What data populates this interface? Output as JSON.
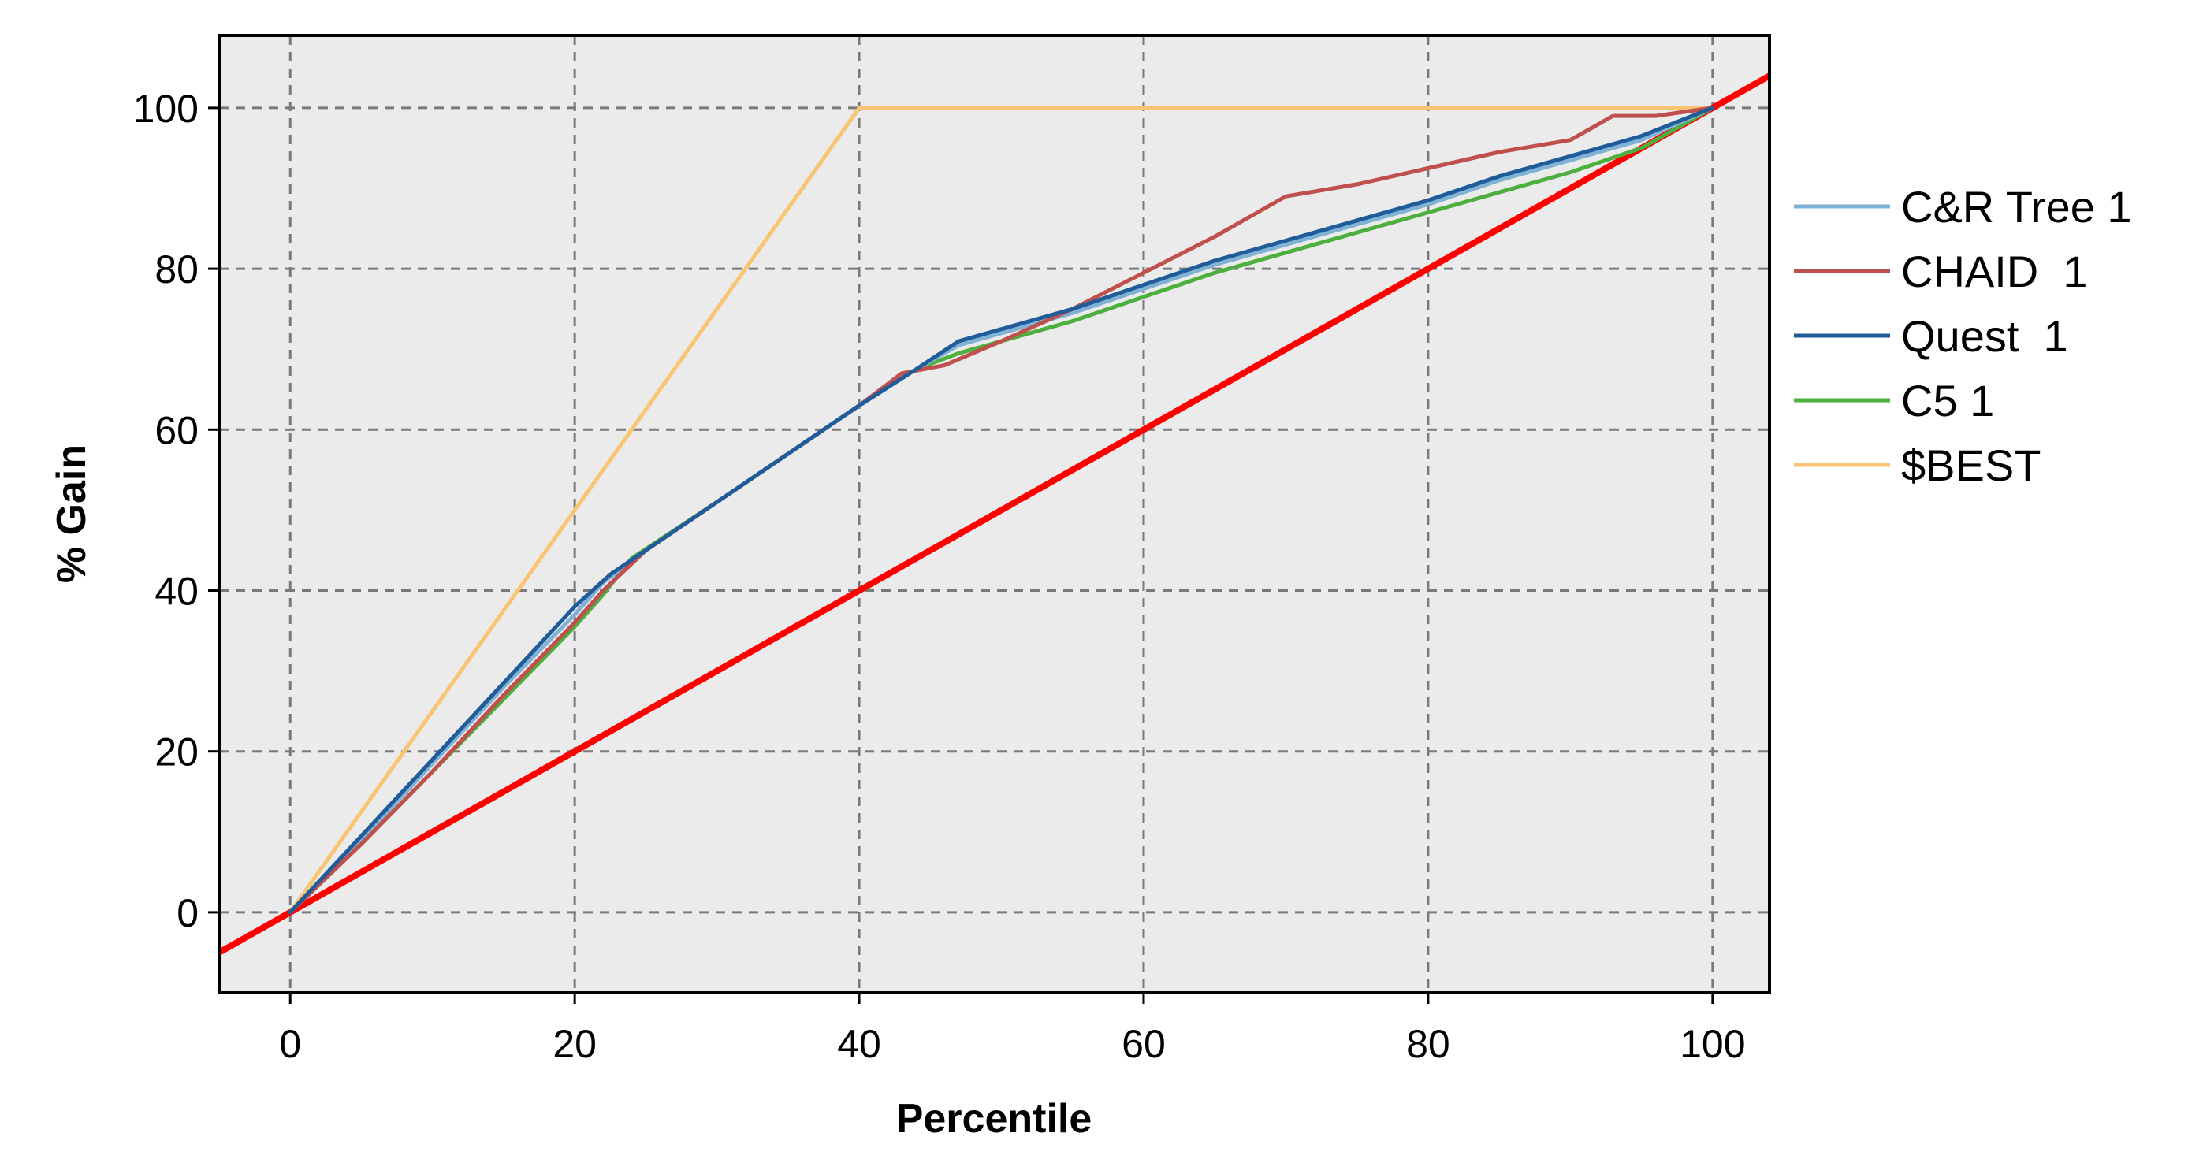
{
  "chart_data": {
    "type": "line",
    "title": "",
    "xlabel": "Percentile",
    "ylabel": "% Gain",
    "xlim": [
      -5,
      104
    ],
    "ylim": [
      -10,
      109
    ],
    "xticks": [
      0,
      20,
      40,
      60,
      80,
      100
    ],
    "yticks": [
      0,
      20,
      40,
      60,
      80,
      100
    ],
    "grid": true,
    "legend_position": "right",
    "plot_background": "#ebebeb",
    "series": [
      {
        "name": "C&R Tree 1",
        "color": "#7fb2d5",
        "x": [
          0,
          5,
          10,
          15,
          20,
          22,
          25,
          30,
          35,
          40,
          44,
          47,
          50,
          55,
          60,
          65,
          70,
          75,
          80,
          85,
          90,
          95,
          100
        ],
        "y": [
          0,
          9,
          18.5,
          28,
          37,
          41,
          45,
          51,
          57,
          63,
          67.5,
          70.5,
          72,
          74.5,
          77.5,
          80.5,
          83,
          85.5,
          88,
          91,
          93.5,
          96,
          100
        ]
      },
      {
        "name": "CHAID  1",
        "color": "#c0504d",
        "x": [
          0,
          5,
          10,
          15,
          20,
          22,
          25,
          30,
          35,
          40,
          43,
          46,
          50,
          55,
          60,
          65,
          70,
          75,
          80,
          85,
          90,
          93,
          96,
          100
        ],
        "y": [
          0,
          8.5,
          17.5,
          27,
          36,
          40,
          45,
          51,
          57,
          63,
          67,
          68,
          71,
          75,
          79.5,
          84,
          89,
          90.5,
          92.5,
          94.5,
          96,
          99,
          99,
          100
        ]
      },
      {
        "name": "Quest  1",
        "color": "#1f5c99",
        "x": [
          0,
          5,
          10,
          15,
          20,
          22.5,
          25,
          30,
          35,
          40,
          44,
          47,
          50,
          55,
          60,
          65,
          70,
          75,
          80,
          85,
          90,
          95,
          100
        ],
        "y": [
          0,
          9.5,
          19,
          28.5,
          38,
          42,
          45,
          51,
          57,
          63,
          67.5,
          71,
          72.5,
          75,
          78,
          81,
          83.5,
          86,
          88.5,
          91.5,
          94,
          96.5,
          100
        ]
      },
      {
        "name": "C5 1",
        "color": "#4caf3e",
        "x": [
          0,
          5,
          10,
          15,
          20,
          22,
          24,
          30,
          35,
          40,
          44,
          47,
          50,
          55,
          60,
          65,
          70,
          75,
          80,
          85,
          90,
          95,
          100
        ],
        "y": [
          0,
          8.5,
          17.5,
          26.5,
          35.5,
          39.5,
          44,
          51,
          57,
          63,
          67.5,
          69.5,
          71,
          73.5,
          76.5,
          79.5,
          82,
          84.5,
          87,
          89.5,
          92,
          95,
          100
        ]
      },
      {
        "name": "$BEST",
        "color": "#f9c572",
        "x": [
          0,
          40,
          100
        ],
        "y": [
          0,
          100,
          100
        ]
      }
    ],
    "baseline": {
      "color": "#ff0000",
      "x": [
        -5,
        104
      ],
      "y": [
        -5,
        104
      ]
    }
  }
}
